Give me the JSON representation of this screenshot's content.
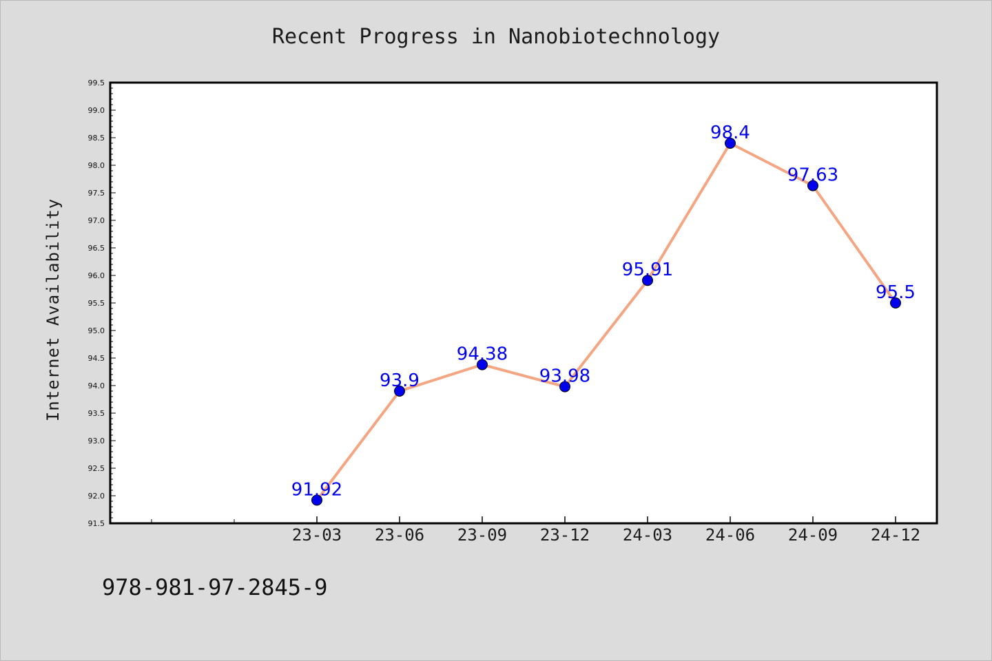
{
  "chart_data": {
    "type": "line",
    "title": "Recent Progress in Nanobiotechnology",
    "ylabel": "Internet Availability",
    "xlabel": "",
    "categories": [
      "23-03",
      "23-06",
      "23-09",
      "23-12",
      "24-03",
      "24-06",
      "24-09",
      "24-12"
    ],
    "series": [
      {
        "values": [
          91.92,
          93.9,
          94.38,
          93.98,
          95.91,
          98.4,
          97.63,
          95.5
        ],
        "labels": [
          "91.92",
          "93.9",
          "94.38",
          "93.98",
          "95.91",
          "98.4",
          "97.63",
          "95.5"
        ]
      }
    ],
    "ylim": [
      91.5,
      99.5
    ],
    "yticks": [
      "91.5",
      "92.0",
      "92.5",
      "93.0",
      "93.5",
      "94.0",
      "94.5",
      "95.0",
      "95.5",
      "96.0",
      "96.5",
      "97.0",
      "97.5",
      "98.0",
      "98.5",
      "99.0",
      "99.5"
    ],
    "grid": false,
    "legend": "none",
    "colors": {
      "line": "#f4a582",
      "marker": "#0000ee",
      "data_label": "#0000ee",
      "background": "#dcdcdc",
      "plot_area": "#ffffff"
    }
  },
  "footer_text": "978-981-97-2845-9"
}
